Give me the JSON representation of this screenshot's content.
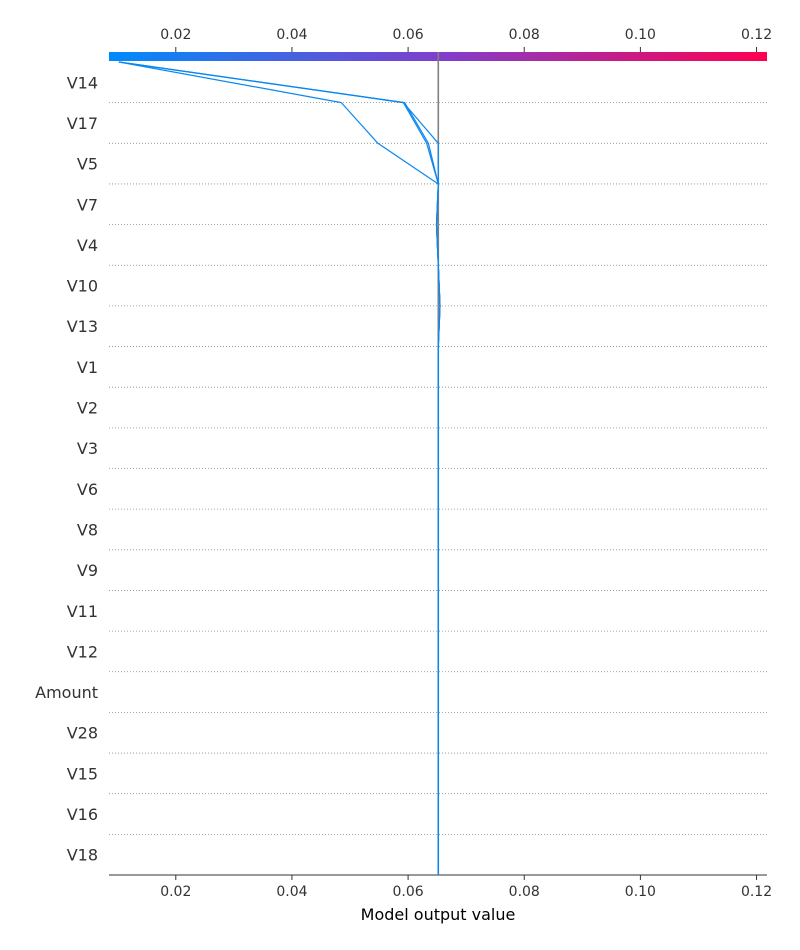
{
  "chart_data": {
    "type": "decision_plot",
    "xlabel": "Model output value",
    "xlim": [
      0.0085,
      0.1218
    ],
    "x_ticks": [
      0.02,
      0.04,
      0.06,
      0.08,
      0.1,
      0.12
    ],
    "x_tick_labels": [
      "0.02",
      "0.04",
      "0.06",
      "0.08",
      "0.10",
      "0.12"
    ],
    "base_value": 0.0652,
    "features": [
      "V14",
      "V17",
      "V5",
      "V7",
      "V4",
      "V10",
      "V13",
      "V1",
      "V2",
      "V3",
      "V6",
      "V8",
      "V9",
      "V11",
      "V12",
      "Amount",
      "V28",
      "V15",
      "V16",
      "V18"
    ],
    "colorbar": {
      "min": 0.0085,
      "max": 0.1218,
      "color_low": "#008bfb",
      "color_high": "#ff0051"
    },
    "line_color": "#0b88f0",
    "base_line_color": "#808080",
    "gridlines": "dotted",
    "series": [
      {
        "values": [
          0.0652,
          0.0652,
          0.0652,
          0.0652,
          0.0652,
          0.0652,
          0.0652,
          0.0652,
          0.0652,
          0.0652,
          0.0652,
          0.0652,
          0.0652,
          0.0652,
          0.0655,
          0.0652,
          0.0649,
          0.0652,
          0.0548,
          0.0485,
          0.0102
        ]
      },
      {
        "values": [
          0.0652,
          0.0652,
          0.0652,
          0.0652,
          0.0652,
          0.0652,
          0.0652,
          0.0652,
          0.0652,
          0.0652,
          0.0652,
          0.0652,
          0.0652,
          0.0652,
          0.0655,
          0.0652,
          0.0649,
          0.0652,
          0.0652,
          0.0592,
          0.0102
        ]
      },
      {
        "values": [
          0.0652,
          0.0652,
          0.0652,
          0.0652,
          0.0652,
          0.0652,
          0.0652,
          0.0652,
          0.0652,
          0.0652,
          0.0652,
          0.0652,
          0.0652,
          0.0652,
          0.0655,
          0.0652,
          0.0649,
          0.0652,
          0.0632,
          0.0592,
          0.0102
        ]
      },
      {
        "values": [
          0.0652,
          0.0652,
          0.0652,
          0.0652,
          0.0652,
          0.0652,
          0.0652,
          0.0652,
          0.0652,
          0.0652,
          0.0652,
          0.0652,
          0.0652,
          0.0652,
          0.0655,
          0.0652,
          0.0649,
          0.0652,
          0.0635,
          0.0594,
          0.0102
        ]
      }
    ]
  }
}
